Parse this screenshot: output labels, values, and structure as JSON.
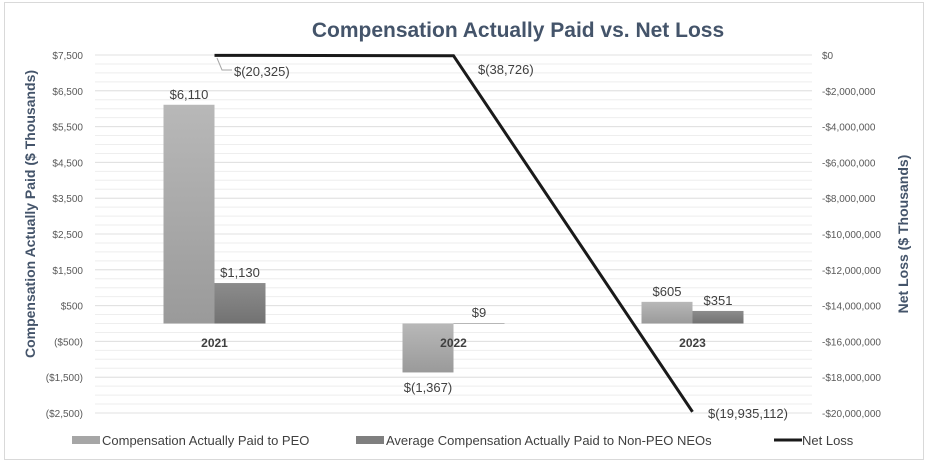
{
  "chart_data": {
    "type": "bar+line",
    "title": "Compensation Actually Paid vs. Net Loss",
    "categories": [
      "2021",
      "2022",
      "2023"
    ],
    "ylabel_left": "Compensation Actually Paid ($ Thousands)",
    "ylabel_right": "Net Loss ($ Thousands)",
    "ylim_left": [
      -2500,
      7500
    ],
    "ylim_right": [
      -20000000,
      0
    ],
    "yticks_left": [
      "$7,500",
      "$6,500",
      "$5,500",
      "$4,500",
      "$3,500",
      "$2,500",
      "$1,500",
      "$500",
      "($500)",
      "($1,500)",
      "($2,500)"
    ],
    "yticks_right": [
      "$0",
      "-$2,000,000",
      "-$4,000,000",
      "-$6,000,000",
      "-$8,000,000",
      "-$10,000,000",
      "-$12,000,000",
      "-$14,000,000",
      "-$16,000,000",
      "-$18,000,000",
      "-$20,000,000"
    ],
    "grid": true,
    "legend_position": "bottom",
    "series": [
      {
        "name": "Compensation Actually Paid  to PEO",
        "type": "bar",
        "axis": "left",
        "color": "#a6a6a6",
        "values": [
          6110,
          -1367,
          605
        ],
        "labels": [
          "$6,110",
          "$(1,367)",
          "$605"
        ]
      },
      {
        "name": "Average Compensation Actually Paid to Non-PEO NEOs",
        "type": "bar",
        "axis": "left",
        "color": "#7f7f7f",
        "values": [
          1130,
          9,
          351
        ],
        "labels": [
          "$1,130",
          "$9",
          "$351"
        ]
      },
      {
        "name": "Net Loss",
        "type": "line",
        "axis": "right",
        "color": "#1a1a1a",
        "values": [
          -20325,
          -38726,
          -19935112
        ],
        "labels": [
          "$(20,325)",
          "$(38,726)",
          "$(19,935,112)"
        ]
      }
    ]
  }
}
